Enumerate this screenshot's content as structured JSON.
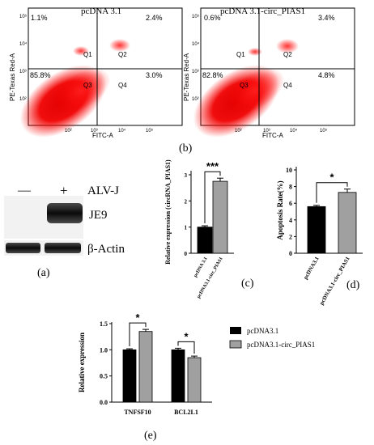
{
  "flow": [
    {
      "title": "pcDNA 3.1",
      "ylabel": "PE-Texas Red-A",
      "xlabel": "FITC-A",
      "quadrants": {
        "ul": "1.1%",
        "ur": "2.4%",
        "ll": "85.8%",
        "lr": "3.0%"
      },
      "qlabels": [
        "Q1",
        "Q2",
        "Q3",
        "Q4"
      ],
      "xticks": [
        "10²",
        "10³",
        "10⁴",
        "10⁵"
      ],
      "yticks": [
        "10⁵",
        "10⁴",
        "10³",
        "10²"
      ]
    },
    {
      "title": "pcDNA 3.1-circ_PIAS1",
      "ylabel": "PE-Texas Red-A",
      "xlabel": "FITC-A",
      "quadrants": {
        "ul": "0.6%",
        "ur": "3.4%",
        "ll": "82.8%",
        "lr": "4.8%"
      },
      "qlabels": [
        "Q1",
        "Q2",
        "Q3",
        "Q4"
      ],
      "xticks": [
        "10²",
        "10³",
        "10⁴",
        "10⁵"
      ],
      "yticks": [
        "10⁵",
        "10⁴",
        "10³",
        "10²"
      ]
    }
  ],
  "panel_labels": {
    "a": "(a)",
    "b": "(b)",
    "c": "(c)",
    "d": "(d)",
    "e": "(e)"
  },
  "blot": {
    "minus": "—",
    "plus": "+",
    "condition": "ALV-J",
    "band1": "JE9",
    "band2": "β-Actin"
  },
  "chart_data": [
    {
      "type": "bar",
      "panel": "c",
      "categories": [
        "pcDNA 3.1",
        "pcDNA3.1-circ_PIAS1"
      ],
      "values": [
        1.0,
        2.75
      ],
      "errors": [
        0.05,
        0.12
      ],
      "ylabel": "Relative expression (circRNA_PIAS1)",
      "ylim": [
        0,
        3
      ],
      "yticks": [
        0,
        1,
        2,
        3
      ],
      "significance": "***",
      "colors": [
        "#000000",
        "#a0a0a0"
      ]
    },
    {
      "type": "bar",
      "panel": "d",
      "categories": [
        "pcDNA3.1",
        "pcDNA3.1-circ_PIAS1"
      ],
      "values": [
        5.6,
        7.3
      ],
      "errors": [
        0.15,
        0.4
      ],
      "ylabel": "Apoptosis Rate(%)",
      "ylim": [
        0,
        10
      ],
      "yticks": [
        0,
        2,
        4,
        6,
        8,
        10
      ],
      "significance": "*",
      "colors": [
        "#000000",
        "#a0a0a0"
      ]
    },
    {
      "type": "bar",
      "panel": "e",
      "categories": [
        "TNFSF10",
        "BCL2L1"
      ],
      "series": [
        {
          "name": "pcDNA3.1",
          "values": [
            1.0,
            1.0
          ],
          "errors": [
            0.02,
            0.03
          ]
        },
        {
          "name": "pcDNA3.1-circ_PIAS1",
          "values": [
            1.35,
            0.85
          ],
          "errors": [
            0.04,
            0.03
          ]
        }
      ],
      "ylabel": "Relative expression",
      "ylim": [
        0,
        1.5
      ],
      "yticks": [
        "0.0",
        "0.5",
        "1.0",
        "1.5"
      ],
      "significance": [
        "*",
        "*"
      ],
      "colors": [
        "#000000",
        "#a0a0a0"
      ]
    }
  ]
}
